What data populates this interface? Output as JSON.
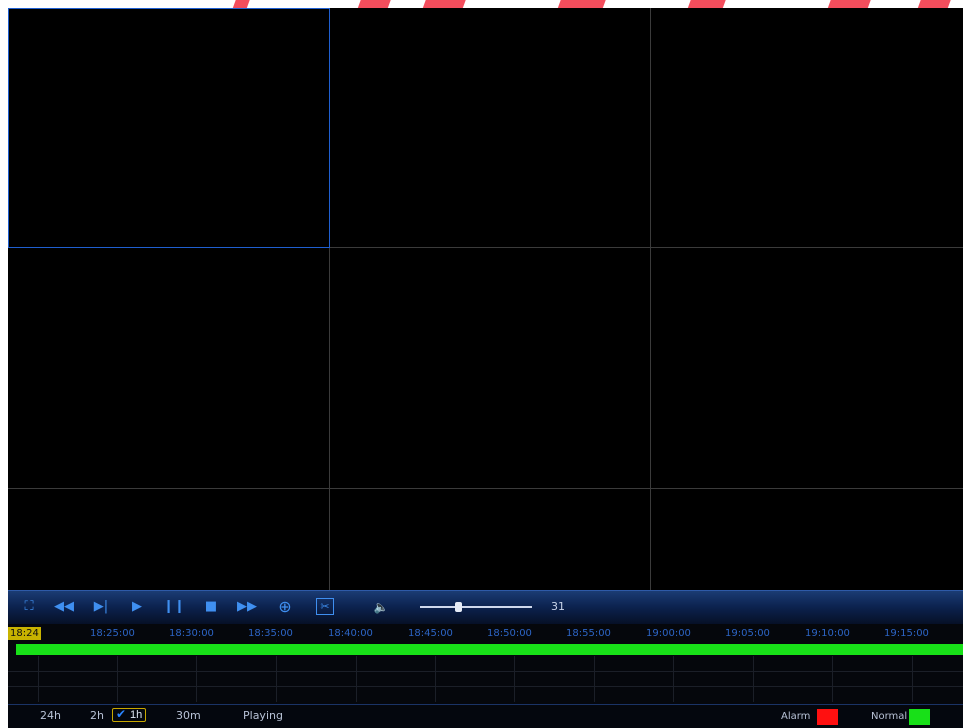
{
  "toolbar": {
    "buttons": [
      {
        "name": "fullscreen-icon",
        "glyph": "⛶"
      },
      {
        "name": "rewind-icon",
        "glyph": "◀◀"
      },
      {
        "name": "step-forward-icon",
        "glyph": "▶|"
      },
      {
        "name": "play-icon",
        "glyph": "▶"
      },
      {
        "name": "pause-icon",
        "glyph": "❙❙"
      },
      {
        "name": "stop-icon",
        "glyph": "■"
      },
      {
        "name": "fast-forward-icon",
        "glyph": "▶▶"
      },
      {
        "name": "zoom-in-icon",
        "glyph": "⊕"
      },
      {
        "name": "clip-icon",
        "glyph": "✂"
      },
      {
        "name": "volume-icon",
        "glyph": "🔈"
      }
    ],
    "volume": {
      "value": "31",
      "level": 0.31
    }
  },
  "timeline": {
    "current_time": "18:24",
    "ticks": [
      "18:25:00",
      "18:30:00",
      "18:35:00",
      "18:40:00",
      "18:45:00",
      "18:50:00",
      "18:55:00",
      "19:00:00",
      "19:05:00",
      "19:10:00",
      "19:15:00"
    ]
  },
  "bottom": {
    "ranges": [
      "24h",
      "2h",
      "1h",
      "30m"
    ],
    "selected_range": "1h",
    "status": "Playing",
    "legend": [
      {
        "label": "Alarm",
        "color": "#ff1010"
      },
      {
        "label": "Normal",
        "color": "#18e018"
      }
    ]
  },
  "colors": {
    "accent": "#3f8ff0",
    "active_cell_border": "#1f5fd0"
  }
}
